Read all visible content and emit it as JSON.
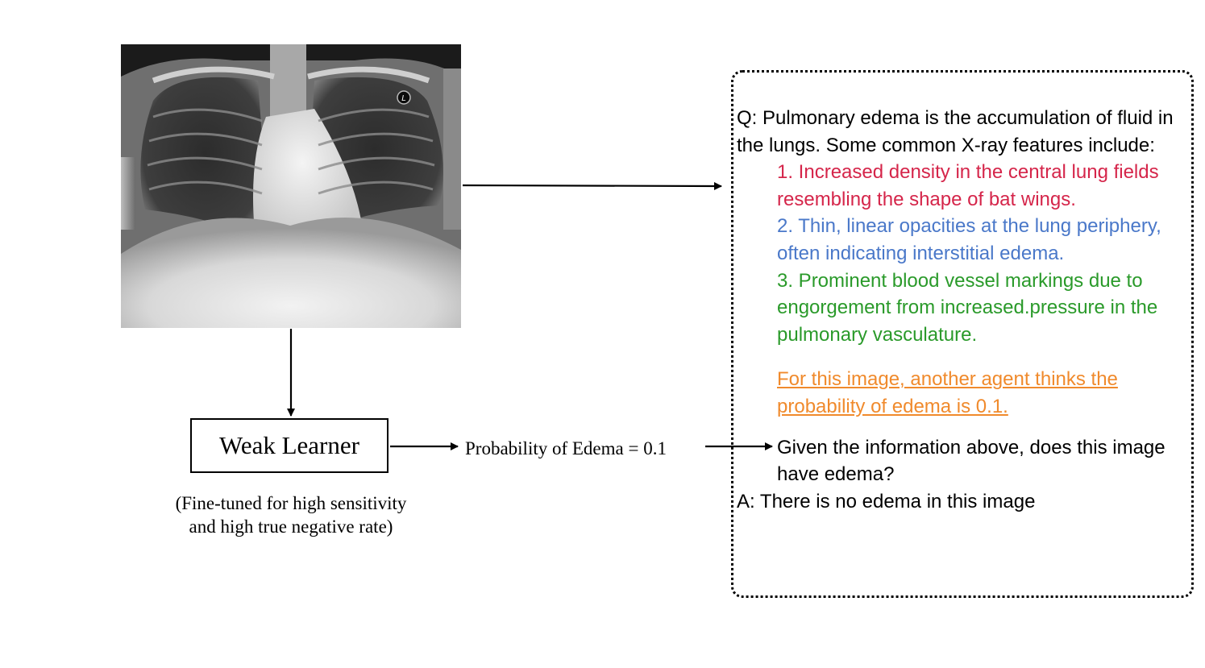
{
  "weak_learner": {
    "label": "Weak Learner",
    "note": "(Fine-tuned for high sensitivity and high true negative rate)"
  },
  "probability_label": "Probability of Edema = 0.1",
  "xray": {
    "marker": "L"
  },
  "prompt": {
    "question_intro": "Q: Pulmonary edema is the accumulation of fluid in the lungs. Some common X-ray features include:",
    "features": [
      {
        "text": "1. Increased density in the central lung fields resembling the shape of bat wings.",
        "color": "#d5254a"
      },
      {
        "text": "2. Thin, linear opacities at the lung periphery, often indicating interstitial edema.",
        "color": "#4a78c9"
      },
      {
        "text": "3. Prominent blood vessel markings due to engorgement from increased.pressure in the pulmonary vasculature.",
        "color": "#2a9a2a"
      }
    ],
    "agent_note": "For this image, another agent thinks the probability of edema is 0.1.",
    "agent_note_color": "#f08a2c",
    "question": "Given the information above, does this image have edema?",
    "answer": "A: There is no edema in this image"
  }
}
